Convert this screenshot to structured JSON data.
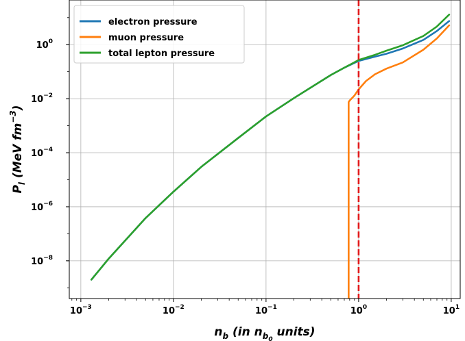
{
  "chart_data": {
    "type": "line",
    "xscale": "log",
    "yscale": "log",
    "xlim": [
      0.00075,
      12.5
    ],
    "ylim": [
      4e-10,
      45
    ],
    "grid": true,
    "legend_position": "upper-left",
    "xlabel": {
      "main": "n",
      "sub": "b",
      "rest": " (in n",
      "sub2": "b",
      "sub2sub": "0",
      "tail": " units)"
    },
    "ylabel": {
      "main": "P",
      "sub": "l",
      "rest": " (MeV fm",
      "sup": "−3",
      "tail": ")"
    },
    "x_ticks": [
      {
        "value": 0.001,
        "base": "10",
        "exp": "−3"
      },
      {
        "value": 0.01,
        "base": "10",
        "exp": "−2"
      },
      {
        "value": 0.1,
        "base": "10",
        "exp": "−1"
      },
      {
        "value": 1,
        "base": "10",
        "exp": "0"
      },
      {
        "value": 10,
        "base": "10",
        "exp": "1"
      }
    ],
    "y_ticks": [
      {
        "value": 1e-08,
        "base": "10",
        "exp": "−8"
      },
      {
        "value": 1e-06,
        "base": "10",
        "exp": "−6"
      },
      {
        "value": 0.0001,
        "base": "10",
        "exp": "−4"
      },
      {
        "value": 0.01,
        "base": "10",
        "exp": "−2"
      },
      {
        "value": 1,
        "base": "10",
        "exp": "0"
      }
    ],
    "vline": {
      "x": 1.0,
      "color": "#e31a1c",
      "style": "dashed"
    },
    "series": [
      {
        "name": "electron pressure",
        "color": "#1f77b4",
        "x": [
          0.0013,
          0.002,
          0.005,
          0.01,
          0.02,
          0.05,
          0.1,
          0.2,
          0.5,
          0.7,
          1.0,
          1.5,
          2,
          3,
          5,
          7,
          9.5
        ],
        "y": [
          2e-09,
          1.2e-08,
          3.8e-07,
          3.6e-06,
          3e-05,
          0.00035,
          0.0022,
          0.0105,
          0.075,
          0.14,
          0.25,
          0.36,
          0.46,
          0.72,
          1.5,
          3.2,
          7.5
        ]
      },
      {
        "name": "muon pressure",
        "color": "#ff7f0e",
        "x": [
          0.78,
          0.78,
          0.8,
          0.9,
          1.0,
          1.2,
          1.5,
          2,
          3,
          5,
          7,
          9.5
        ],
        "y": [
          4e-10,
          0.0075,
          0.0085,
          0.013,
          0.022,
          0.045,
          0.08,
          0.13,
          0.22,
          0.65,
          1.7,
          5.2
        ]
      },
      {
        "name": "total lepton pressure",
        "color": "#2ca02c",
        "x": [
          0.0013,
          0.002,
          0.005,
          0.01,
          0.02,
          0.05,
          0.1,
          0.2,
          0.5,
          0.7,
          1.0,
          1.5,
          2,
          3,
          5,
          7,
          9.5
        ],
        "y": [
          2e-09,
          1.2e-08,
          3.8e-07,
          3.6e-06,
          3e-05,
          0.00035,
          0.0022,
          0.0105,
          0.075,
          0.14,
          0.27,
          0.42,
          0.6,
          0.95,
          2.1,
          4.7,
          13
        ]
      }
    ]
  }
}
